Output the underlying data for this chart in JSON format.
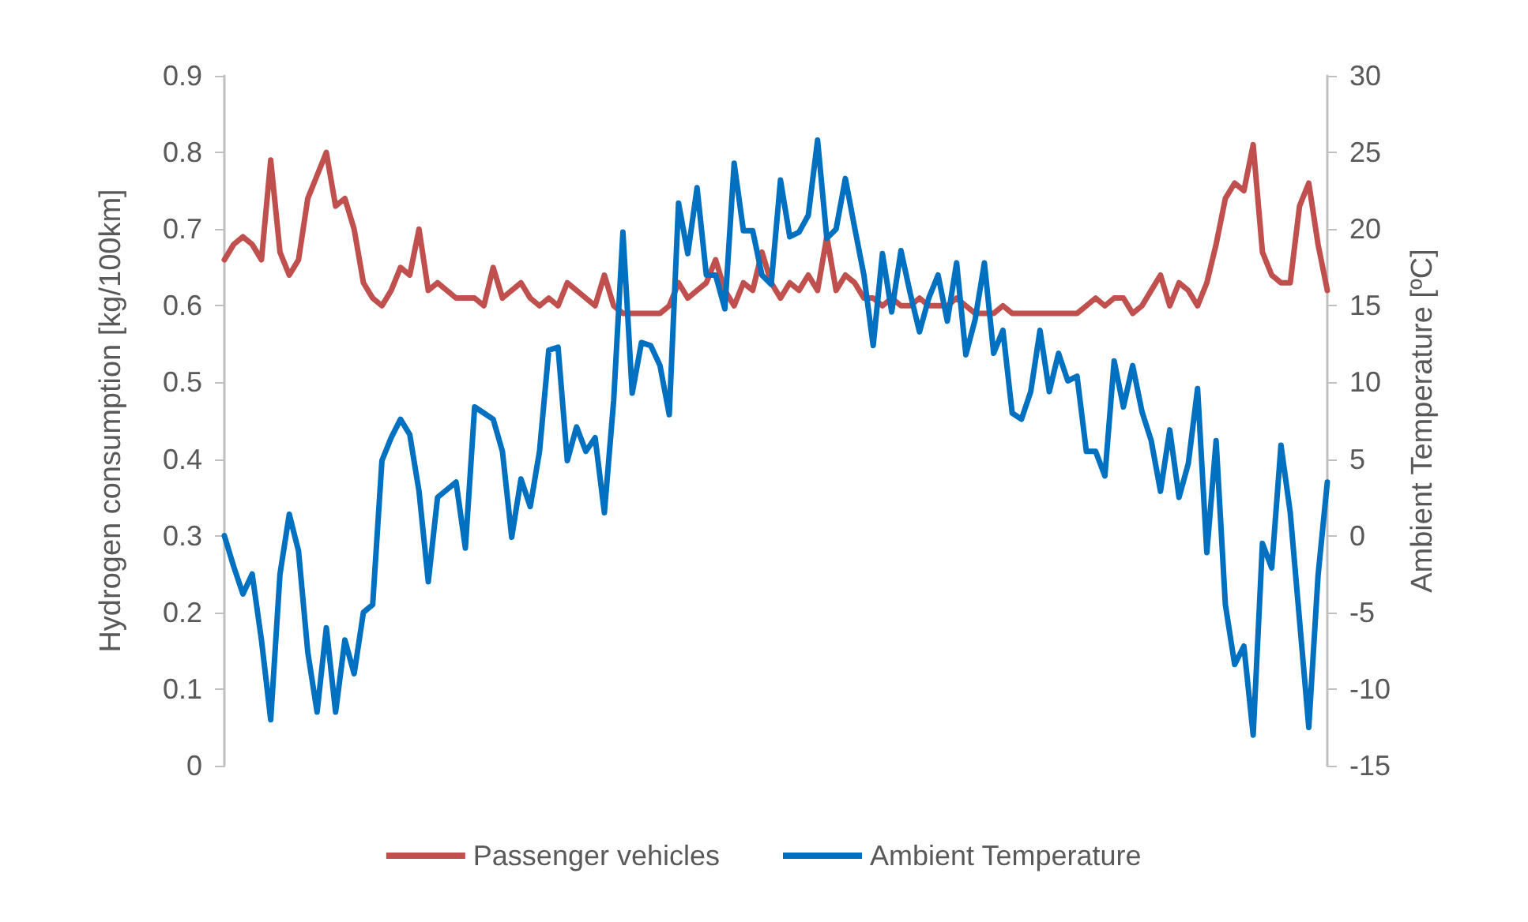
{
  "chart_data": {
    "type": "line",
    "ylabel": "Hydrogen consumption [kg/100km]",
    "y2label": "Ambient Temperature [ºC]",
    "categories": [
      null,
      null,
      null,
      null,
      null,
      null,
      null,
      null,
      null,
      null,
      null,
      null,
      null,
      null,
      null,
      null,
      null,
      null,
      null,
      null,
      null,
      null,
      null,
      null,
      null,
      null,
      null,
      null,
      null,
      null,
      null,
      null,
      null,
      null,
      null,
      null,
      null,
      null,
      null,
      null,
      null,
      null,
      null,
      null,
      null,
      null,
      null,
      null,
      null,
      null,
      null,
      null,
      null,
      null,
      null,
      null,
      null,
      null,
      null,
      null,
      null,
      null,
      null,
      null,
      null,
      null,
      null,
      null,
      null,
      null,
      null,
      null,
      null,
      null,
      null,
      null,
      null,
      null,
      null,
      null,
      null,
      null,
      null,
      null,
      null,
      null,
      null,
      null,
      null,
      null,
      null,
      null,
      null,
      null,
      null,
      null,
      null,
      null,
      null,
      null,
      null,
      null,
      null,
      null,
      null,
      null,
      null,
      null,
      null,
      null,
      null,
      null,
      null,
      null,
      null,
      null,
      null,
      null,
      null,
      null
    ],
    "series": [
      {
        "name": "Passenger vehicles",
        "color": "#c0504d",
        "values": [
          0.66,
          0.68,
          0.69,
          0.68,
          0.66,
          0.79,
          0.67,
          0.64,
          0.66,
          0.74,
          0.77,
          0.8,
          0.73,
          0.74,
          0.7,
          0.63,
          0.61,
          0.6,
          0.62,
          0.65,
          0.64,
          0.7,
          0.62,
          0.63,
          0.62,
          0.61,
          0.61,
          0.61,
          0.6,
          0.65,
          0.61,
          0.62,
          0.63,
          0.61,
          0.6,
          0.61,
          0.6,
          0.63,
          0.62,
          0.61,
          0.6,
          0.64,
          0.6,
          0.59,
          0.59,
          0.59,
          0.59,
          0.59,
          0.6,
          0.63,
          0.61,
          0.62,
          0.63,
          0.66,
          0.62,
          0.6,
          0.63,
          0.62,
          0.67,
          0.63,
          0.61,
          0.63,
          0.62,
          0.64,
          0.62,
          0.69,
          0.62,
          0.64,
          0.63,
          0.61,
          0.61,
          0.6,
          0.61,
          0.6,
          0.6,
          0.61,
          0.6,
          0.6,
          0.6,
          0.61,
          0.6,
          0.59,
          0.59,
          0.59,
          0.6,
          0.59,
          0.59,
          0.59,
          0.59,
          0.59,
          0.59,
          0.59,
          0.59,
          0.6,
          0.61,
          0.6,
          0.61,
          0.61,
          0.59,
          0.6,
          0.62,
          0.64,
          0.6,
          0.63,
          0.62,
          0.6,
          0.63,
          0.68,
          0.74,
          0.76,
          0.75,
          0.81,
          0.67,
          0.64,
          0.63,
          0.63,
          0.73,
          0.76,
          0.68,
          0.62
        ]
      },
      {
        "name": "Ambient Temperature",
        "color": "#0070c0",
        "axis": "y2",
        "values": [
          0,
          -2,
          -3.8,
          -2.5,
          -6.8,
          -12,
          -2.5,
          1.4,
          -1,
          -7.6,
          -11.5,
          -6,
          -11.5,
          -6.8,
          -9,
          -5,
          -4.5,
          4.9,
          6.4,
          7.6,
          6.6,
          2.9,
          -3,
          2.5,
          3,
          3.5,
          -0.8,
          8.4,
          8,
          7.6,
          5.5,
          -0.1,
          3.7,
          1.9,
          5.5,
          12.1,
          12.3,
          4.9,
          7.1,
          5.5,
          6.4,
          1.5,
          8.8,
          19.8,
          9.3,
          12.6,
          12.4,
          11.1,
          7.9,
          21.7,
          18.4,
          22.7,
          17,
          17,
          14.8,
          24.3,
          19.9,
          19.9,
          17,
          16.4,
          23.2,
          19.5,
          19.8,
          20.9,
          25.8,
          19.4,
          20,
          23.3,
          20.1,
          17,
          12.4,
          18.4,
          14.6,
          18.6,
          15.8,
          13.3,
          15.5,
          17,
          14,
          17.8,
          11.8,
          14.1,
          17.8,
          11.9,
          13.4,
          8,
          7.6,
          9.4,
          13.4,
          9.4,
          11.9,
          10.1,
          10.4,
          5.5,
          5.5,
          3.9,
          11.4,
          8.4,
          11.1,
          8.1,
          6.2,
          2.9,
          6.9,
          2.5,
          4.7,
          9.6,
          -1.1,
          6.2,
          -4.5,
          -8.4,
          -7.2,
          -13,
          -0.5,
          -2.1,
          5.9,
          1.5,
          -5.5,
          -12.5,
          -2.6,
          3.5
        ]
      }
    ],
    "ylim": [
      0,
      0.9
    ],
    "yticks": [
      0,
      0.1,
      0.2,
      0.3,
      0.4,
      0.5,
      0.6,
      0.7,
      0.8,
      0.9
    ],
    "y2lim": [
      -15,
      30
    ],
    "y2ticks": [
      -15,
      -10,
      -5,
      0,
      5,
      10,
      15,
      20,
      25,
      30
    ],
    "tick_labels": "y",
    "grid": false,
    "legend": "bottom",
    "line_style": "solid"
  }
}
